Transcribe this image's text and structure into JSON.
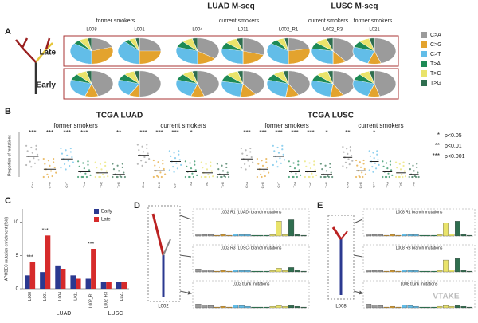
{
  "panel_a": {
    "label": "A",
    "titles": [
      "LUAD M-seq",
      "LUSC M-seq"
    ],
    "groups": [
      "former smokers",
      "current smokers",
      "current smokers",
      "former smokers"
    ],
    "samples": [
      "L008",
      "L001",
      "L004",
      "L011",
      "L002_R1",
      "L002_R3",
      "L021"
    ],
    "rows": [
      "Late",
      "Early"
    ],
    "legend": [
      {
        "name": "C>A",
        "color": "#9b9b9b"
      },
      {
        "name": "C>G",
        "color": "#e3a32e"
      },
      {
        "name": "C>T",
        "color": "#62bde8"
      },
      {
        "name": "T>A",
        "color": "#1d8a55"
      },
      {
        "name": "T>C",
        "color": "#e9e36a"
      },
      {
        "name": "T>G",
        "color": "#2f6e4f"
      }
    ],
    "late": [
      [
        20,
        30,
        35,
        5,
        7,
        3
      ],
      [
        25,
        25,
        38,
        4,
        5,
        3
      ],
      [
        35,
        15,
        30,
        8,
        8,
        4
      ],
      [
        30,
        20,
        28,
        8,
        9,
        5
      ],
      [
        22,
        28,
        35,
        6,
        6,
        3
      ],
      [
        40,
        10,
        28,
        8,
        9,
        5
      ],
      [
        45,
        10,
        25,
        8,
        8,
        4
      ]
    ],
    "early": [
      [
        45,
        10,
        25,
        8,
        8,
        4
      ],
      [
        50,
        8,
        22,
        8,
        8,
        4
      ],
      [
        45,
        10,
        25,
        8,
        8,
        4
      ],
      [
        40,
        12,
        26,
        9,
        9,
        4
      ],
      [
        42,
        10,
        28,
        8,
        8,
        4
      ],
      [
        42,
        10,
        27,
        8,
        9,
        4
      ],
      [
        46,
        9,
        25,
        8,
        8,
        4
      ]
    ]
  },
  "panel_b": {
    "label": "B",
    "titles": [
      "TCGA LUAD",
      "TCGA LUSC"
    ],
    "ylabel": "Proportion of mutations",
    "ylim": [
      0,
      0.8
    ],
    "groups": [
      {
        "name": "former smokers",
        "stars": [
          "***",
          "***",
          "***",
          "***",
          null,
          "**"
        ],
        "medians": [
          0.4,
          0.15,
          0.35,
          0.1,
          0.08,
          0.05
        ]
      },
      {
        "name": "current smokers",
        "stars": [
          "***",
          "***",
          "***",
          "*",
          null,
          null
        ],
        "medians": [
          0.42,
          0.12,
          0.3,
          0.1,
          0.08,
          0.05
        ]
      },
      {
        "name": "former smokers",
        "stars": [
          "***",
          "***",
          "***",
          "***",
          "***",
          "*"
        ],
        "medians": [
          0.35,
          0.15,
          0.4,
          0.1,
          0.1,
          0.05
        ]
      },
      {
        "name": "current smokers",
        "stars": [
          "**",
          null,
          "*",
          null,
          null,
          null
        ],
        "medians": [
          0.38,
          0.12,
          0.3,
          0.1,
          0.08,
          0.05
        ]
      }
    ],
    "significance": [
      {
        "symbol": "*",
        "label": "p<0.05"
      },
      {
        "symbol": "**",
        "label": "p<0.01"
      },
      {
        "symbol": "***",
        "label": "p<0.001"
      }
    ]
  },
  "panel_c": {
    "label": "C",
    "ylabel": "APOBEC mutation enrichment (fold)",
    "ylim": [
      0,
      12
    ],
    "yticks": [
      0,
      5,
      10
    ],
    "categories": [
      "L008",
      "L001",
      "L004",
      "L011",
      "L002_R1",
      "L002_R3",
      "L021"
    ],
    "series": [
      {
        "name": "Early",
        "color": "#2b3990",
        "values": [
          2,
          2.5,
          3.5,
          2,
          1.5,
          1,
          1
        ]
      },
      {
        "name": "Late",
        "color": "#d62b2b",
        "values": [
          4,
          8,
          3,
          1.5,
          6,
          1,
          1
        ]
      }
    ],
    "stars": [
      "***",
      "***",
      null,
      null,
      "***",
      null,
      null
    ],
    "groups": [
      "LUAD",
      "LUSC"
    ]
  },
  "panel_d": {
    "label": "D",
    "tree": "L002",
    "ylim": [
      0,
      0.3
    ],
    "subpanels": [
      {
        "title": "L002 R1 (LUAD) branch mutations",
        "values": [
          0.03,
          0.02,
          0.02,
          0.01,
          0.02,
          0.01,
          0.03,
          0.02,
          0.02,
          0.01,
          0.01,
          0.01,
          0.02,
          0.2,
          0.02,
          0.22,
          0.02,
          0.01
        ]
      },
      {
        "title": "L002 R3 (LUSC) branch mutations",
        "values": [
          0.04,
          0.03,
          0.03,
          0.01,
          0.02,
          0.01,
          0.03,
          0.02,
          0.02,
          0.01,
          0.01,
          0.01,
          0.02,
          0.05,
          0.02,
          0.06,
          0.02,
          0.01
        ]
      },
      {
        "title": "L002 trunk mutations",
        "values": [
          0.05,
          0.04,
          0.03,
          0.01,
          0.02,
          0.01,
          0.04,
          0.03,
          0.02,
          0.01,
          0.01,
          0.01,
          0.02,
          0.03,
          0.02,
          0.03,
          0.02,
          0.01
        ]
      }
    ]
  },
  "panel_e": {
    "label": "E",
    "tree": "L008",
    "ylim": [
      0,
      0.3
    ],
    "subpanels": [
      {
        "title": "L008 R1 branch mutations",
        "values": [
          0.03,
          0.02,
          0.02,
          0.01,
          0.02,
          0.01,
          0.03,
          0.02,
          0.02,
          0.01,
          0.01,
          0.01,
          0.02,
          0.18,
          0.03,
          0.2,
          0.02,
          0.01
        ]
      },
      {
        "title": "L008 R3 branch mutations",
        "values": [
          0.03,
          0.02,
          0.02,
          0.01,
          0.02,
          0.01,
          0.03,
          0.02,
          0.02,
          0.01,
          0.01,
          0.01,
          0.02,
          0.16,
          0.03,
          0.18,
          0.02,
          0.01
        ]
      },
      {
        "title": "L008 trunk mutations",
        "values": [
          0.05,
          0.04,
          0.03,
          0.01,
          0.02,
          0.01,
          0.04,
          0.03,
          0.02,
          0.01,
          0.01,
          0.01,
          0.02,
          0.03,
          0.02,
          0.03,
          0.02,
          0.01
        ]
      }
    ]
  },
  "watermark": "VTAKE"
}
